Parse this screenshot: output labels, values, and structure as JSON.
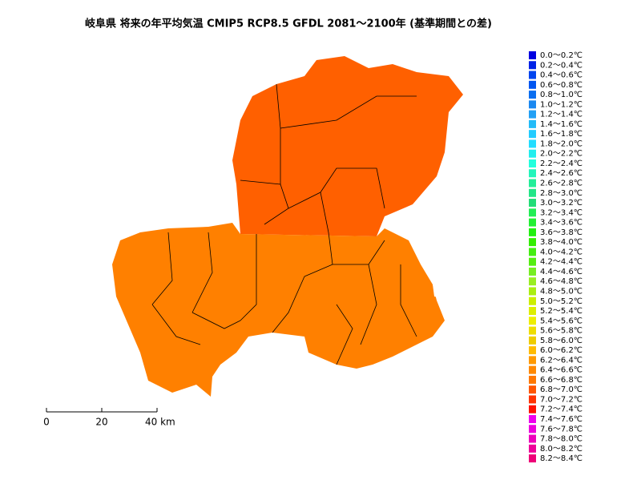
{
  "header": {
    "title": "岐阜県 将来の年平均気温 CMIP5 RCP8.5 GFDL 2081～2100年 (基準期間との差)"
  },
  "legend": {
    "items": [
      {
        "label": "0.0～0.2℃",
        "color": "#0000e0"
      },
      {
        "label": "0.2～0.4℃",
        "color": "#0022e6"
      },
      {
        "label": "0.4～0.6℃",
        "color": "#0044ee"
      },
      {
        "label": "0.6～0.8℃",
        "color": "#0055f0"
      },
      {
        "label": "0.8～1.0℃",
        "color": "#0a6ef0"
      },
      {
        "label": "1.0～1.2℃",
        "color": "#1a88f0"
      },
      {
        "label": "1.2～1.4℃",
        "color": "#22a0f5"
      },
      {
        "label": "1.4～1.6℃",
        "color": "#22bbf8"
      },
      {
        "label": "1.6～1.8℃",
        "color": "#22ccff"
      },
      {
        "label": "1.8～2.0℃",
        "color": "#22ddff"
      },
      {
        "label": "2.0～2.2℃",
        "color": "#22eeee"
      },
      {
        "label": "2.2～2.4℃",
        "color": "#22ffdd"
      },
      {
        "label": "2.4～2.6℃",
        "color": "#22f5bb"
      },
      {
        "label": "2.6～2.8℃",
        "color": "#22ee99"
      },
      {
        "label": "2.8～3.0℃",
        "color": "#22e688"
      },
      {
        "label": "3.0～3.2℃",
        "color": "#22dd77"
      },
      {
        "label": "3.2～3.4℃",
        "color": "#22ee55"
      },
      {
        "label": "3.4～3.6℃",
        "color": "#22f033"
      },
      {
        "label": "3.6～3.8℃",
        "color": "#22f011"
      },
      {
        "label": "3.8～4.0℃",
        "color": "#33ee00"
      },
      {
        "label": "4.0～4.2℃",
        "color": "#44ee11"
      },
      {
        "label": "4.2～4.4℃",
        "color": "#55ee11"
      },
      {
        "label": "4.4～4.6℃",
        "color": "#77ee22"
      },
      {
        "label": "4.6～4.8℃",
        "color": "#99ee22"
      },
      {
        "label": "4.8～5.0℃",
        "color": "#aaee11"
      },
      {
        "label": "5.0～5.2℃",
        "color": "#ccee00"
      },
      {
        "label": "5.2～5.4℃",
        "color": "#ddee00"
      },
      {
        "label": "5.4～5.6℃",
        "color": "#eeee00"
      },
      {
        "label": "5.6～5.8℃",
        "color": "#eedd00"
      },
      {
        "label": "5.8～6.0℃",
        "color": "#eecc00"
      },
      {
        "label": "6.0～6.2℃",
        "color": "#ffbb00"
      },
      {
        "label": "6.2～6.4℃",
        "color": "#ff9900"
      },
      {
        "label": "6.4～6.6℃",
        "color": "#ff8800"
      },
      {
        "label": "6.6～6.8℃",
        "color": "#ff7700"
      },
      {
        "label": "6.8～7.0℃",
        "color": "#ff5500"
      },
      {
        "label": "7.0～7.2℃",
        "color": "#ff3300"
      },
      {
        "label": "7.2～7.4℃",
        "color": "#ff1100"
      },
      {
        "label": "7.4～7.6℃",
        "color": "#ee00ee"
      },
      {
        "label": "7.6～7.8℃",
        "color": "#ee00dd"
      },
      {
        "label": "7.8～8.0℃",
        "color": "#ee00bb"
      },
      {
        "label": "8.0～8.2℃",
        "color": "#ee0099"
      },
      {
        "label": "8.2～8.4℃",
        "color": "#ee0077"
      }
    ]
  },
  "scale_bar": {
    "labels": [
      "0",
      "20",
      "40 km"
    ]
  }
}
